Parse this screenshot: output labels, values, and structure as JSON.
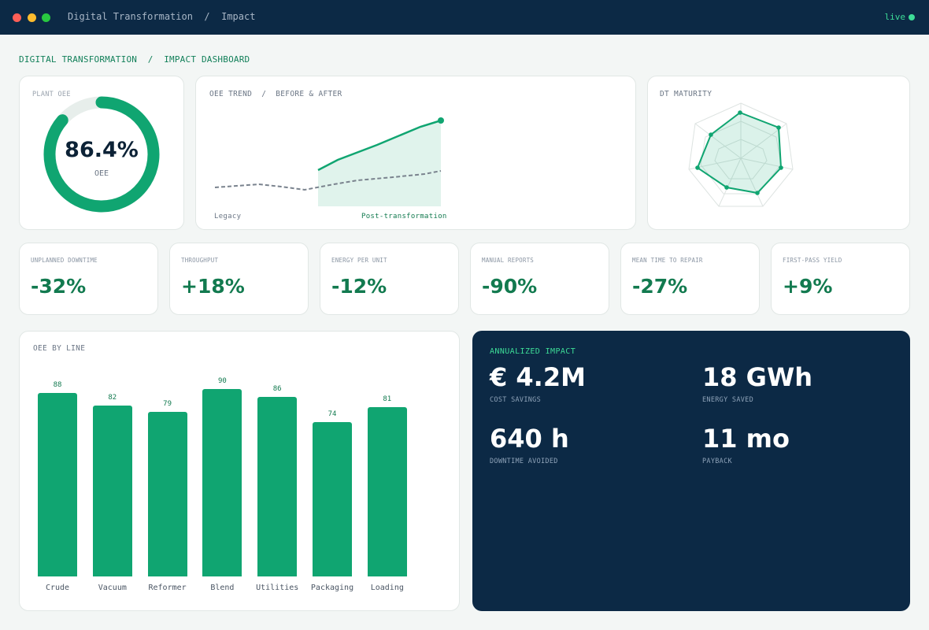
{
  "window": {
    "breadcrumb": "Digital Transformation  /  Impact",
    "status": "live"
  },
  "page": {
    "breadcrumb": "DIGITAL TRANSFORMATION  /  IMPACT DASHBOARD"
  },
  "oee_gauge": {
    "title": "PLANT OEE",
    "value_text": "86.4%",
    "value": 86.4,
    "label": "OEE"
  },
  "trend": {
    "title": "OEE TREND  /  BEFORE & AFTER",
    "legacy_label": "Legacy",
    "post_label": "Post-transformation"
  },
  "maturity": {
    "title": "DT MATURITY"
  },
  "kpis": [
    {
      "label": "UNPLANNED DOWNTIME",
      "value": "-32%"
    },
    {
      "label": "THROUGHPUT",
      "value": "+18%"
    },
    {
      "label": "ENERGY PER UNIT",
      "value": "-12%"
    },
    {
      "label": "MANUAL REPORTS",
      "value": "-90%"
    },
    {
      "label": "MEAN TIME TO REPAIR",
      "value": "-27%"
    },
    {
      "label": "FIRST-PASS YIELD",
      "value": "+9%"
    }
  ],
  "bar_chart": {
    "title": "OEE BY LINE"
  },
  "chart_data": {
    "type": "bar",
    "categories": [
      "Crude",
      "Vacuum",
      "Reformer",
      "Blend",
      "Utilities",
      "Packaging",
      "Loading"
    ],
    "values": [
      88,
      82,
      79,
      90,
      86,
      74,
      81
    ],
    "title": "OEE BY LINE",
    "xlabel": "",
    "ylabel": ""
  },
  "impact": {
    "title": "ANNUALIZED IMPACT",
    "metrics": [
      {
        "value": "€ 4.2M",
        "label": "COST SAVINGS"
      },
      {
        "value": "18 GWh",
        "label": "ENERGY SAVED"
      },
      {
        "value": "640 h",
        "label": "DOWNTIME AVOIDED"
      },
      {
        "value": "11 mo",
        "label": "PAYBACK"
      }
    ]
  },
  "colors": {
    "accent": "#10a571",
    "accent_dark": "#127a4f",
    "navy": "#0c2945",
    "live": "#3ddc97"
  }
}
